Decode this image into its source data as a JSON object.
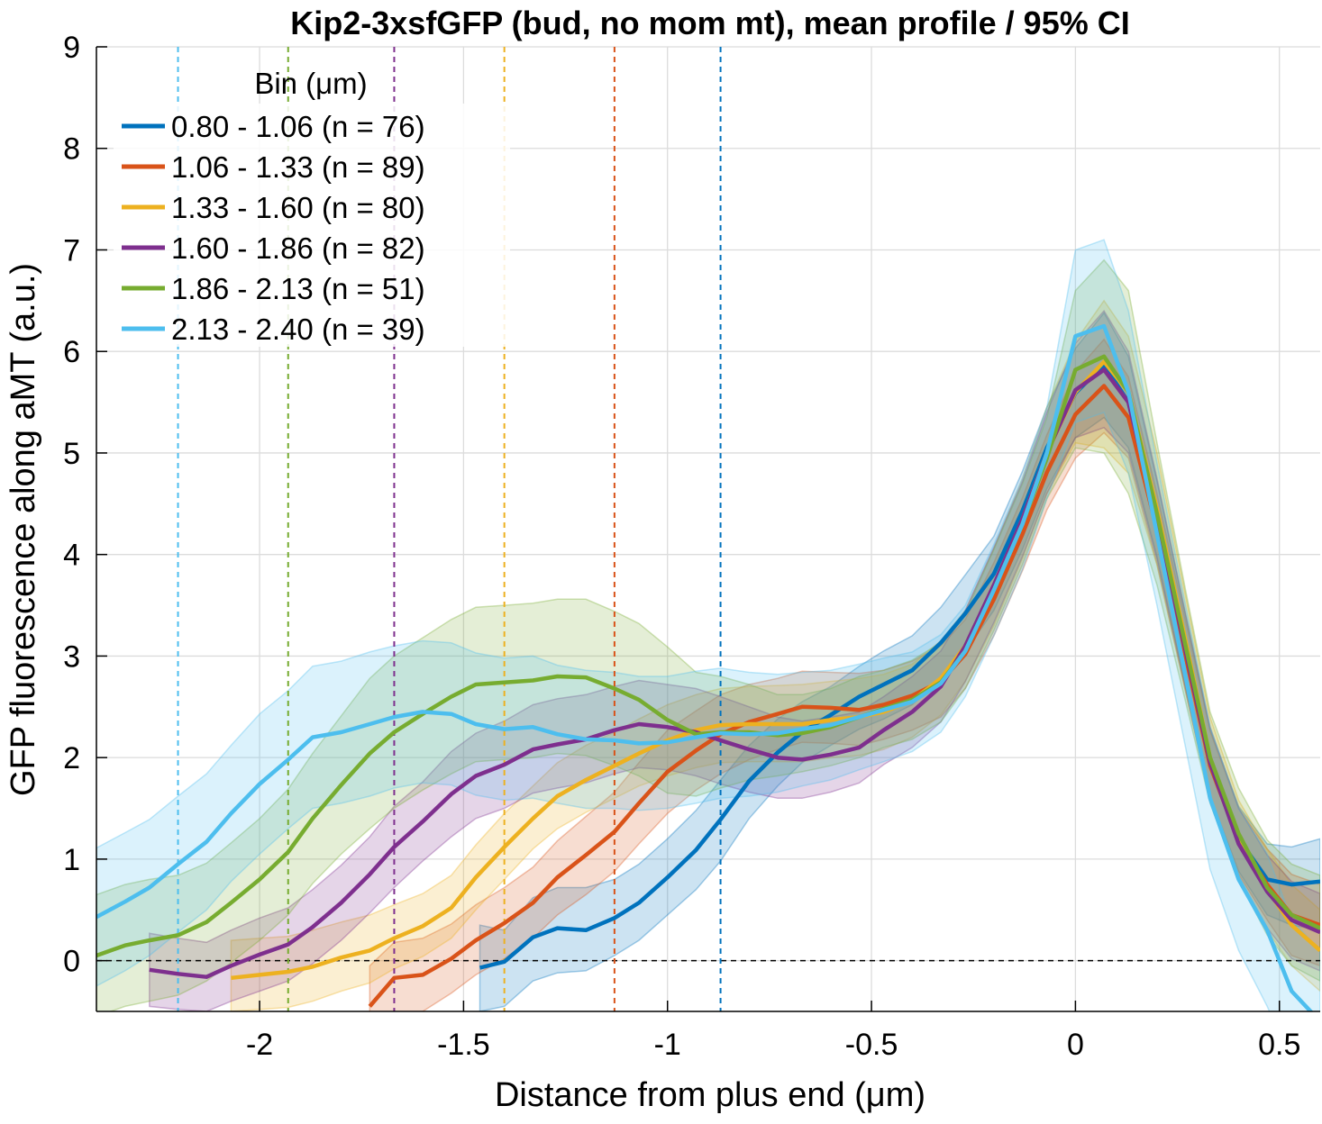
{
  "chart_data": {
    "type": "line",
    "title": "Kip2-3xsfGFP (bud, no mom mt), mean profile / 95% CI",
    "xlabel": "Distance from plus end (μm)",
    "ylabel": "GFP fluorescence along aMT (a.u.)",
    "xlim": [
      -2.4,
      0.6
    ],
    "ylim": [
      -0.5,
      9
    ],
    "xticks": [
      -2,
      -1.5,
      -1,
      -0.5,
      0,
      0.5
    ],
    "xtick_labels": [
      "-2",
      "-1.5",
      "-1",
      "-0.5",
      "0",
      "0.5"
    ],
    "yticks": [
      0,
      1,
      2,
      3,
      4,
      5,
      6,
      7,
      8,
      9
    ],
    "ytick_labels": [
      "0",
      "1",
      "2",
      "3",
      "4",
      "5",
      "6",
      "7",
      "8",
      "9"
    ],
    "grid": true,
    "legend_title": "Bin (μm)",
    "legend_placement": "top-left",
    "zero_line": 0,
    "series": [
      {
        "name": "0.80 - 1.06 (n =  76)",
        "color": "#0072BD",
        "cutoff": -0.87,
        "x": [
          -1.46,
          -1.4,
          -1.33,
          -1.27,
          -1.2,
          -1.13,
          -1.07,
          -1.0,
          -0.93,
          -0.87,
          -0.8,
          -0.73,
          -0.67,
          -0.6,
          -0.53,
          -0.47,
          -0.4,
          -0.33,
          -0.27,
          -0.2,
          -0.13,
          -0.07,
          0.0,
          0.07,
          0.13,
          0.2,
          0.27,
          0.33,
          0.4,
          0.47,
          0.53,
          0.6
        ],
        "y": [
          -0.07,
          -0.01,
          0.23,
          0.32,
          0.3,
          0.42,
          0.57,
          0.82,
          1.09,
          1.39,
          1.77,
          2.05,
          2.25,
          2.42,
          2.6,
          2.72,
          2.86,
          3.13,
          3.42,
          3.81,
          4.43,
          5.05,
          5.59,
          5.87,
          5.5,
          4.35,
          3.05,
          1.95,
          1.2,
          0.8,
          0.75,
          0.78
        ],
        "lower": [
          -0.5,
          -0.45,
          -0.2,
          -0.12,
          -0.1,
          0.05,
          0.2,
          0.45,
          0.7,
          0.98,
          1.4,
          1.72,
          1.95,
          2.12,
          2.28,
          2.38,
          2.52,
          2.78,
          3.05,
          3.45,
          4.05,
          4.65,
          5.15,
          5.35,
          5.05,
          3.98,
          2.7,
          1.62,
          0.88,
          0.45,
          0.35,
          0.3
        ],
        "upper": [
          0.35,
          0.3,
          0.62,
          0.72,
          0.72,
          0.8,
          0.95,
          1.2,
          1.48,
          1.78,
          2.12,
          2.38,
          2.55,
          2.7,
          2.9,
          3.05,
          3.2,
          3.48,
          3.8,
          4.18,
          4.82,
          5.45,
          6.03,
          6.38,
          5.95,
          4.72,
          3.4,
          2.28,
          1.52,
          1.15,
          1.12,
          1.2
        ]
      },
      {
        "name": "1.06 - 1.33 (n =  89)",
        "color": "#D95319",
        "cutoff": -1.13,
        "x": [
          -1.73,
          -1.67,
          -1.6,
          -1.53,
          -1.47,
          -1.4,
          -1.33,
          -1.27,
          -1.2,
          -1.13,
          -1.07,
          -1.0,
          -0.93,
          -0.87,
          -0.8,
          -0.73,
          -0.67,
          -0.6,
          -0.53,
          -0.47,
          -0.4,
          -0.33,
          -0.27,
          -0.2,
          -0.13,
          -0.07,
          0.0,
          0.07,
          0.13,
          0.2,
          0.27,
          0.33,
          0.4,
          0.47,
          0.53,
          0.6
        ],
        "y": [
          -0.45,
          -0.17,
          -0.14,
          0.02,
          0.2,
          0.37,
          0.57,
          0.82,
          1.04,
          1.27,
          1.55,
          1.86,
          2.07,
          2.23,
          2.35,
          2.43,
          2.5,
          2.49,
          2.47,
          2.52,
          2.61,
          2.75,
          3.02,
          3.56,
          4.2,
          4.81,
          5.38,
          5.66,
          5.35,
          4.25,
          3.0,
          1.92,
          1.18,
          0.75,
          0.45,
          0.35
        ],
        "lower": [
          -0.85,
          -0.52,
          -0.5,
          -0.32,
          -0.14,
          0.02,
          0.22,
          0.45,
          0.65,
          0.88,
          1.15,
          1.45,
          1.68,
          1.84,
          1.98,
          2.08,
          2.15,
          2.14,
          2.12,
          2.18,
          2.27,
          2.4,
          2.68,
          3.2,
          3.84,
          4.44,
          4.95,
          5.2,
          4.95,
          3.9,
          2.65,
          1.58,
          0.85,
          0.4,
          0.05,
          -0.05
        ],
        "upper": [
          -0.05,
          0.18,
          0.22,
          0.36,
          0.55,
          0.72,
          0.92,
          1.18,
          1.42,
          1.66,
          1.95,
          2.27,
          2.46,
          2.62,
          2.72,
          2.78,
          2.85,
          2.84,
          2.83,
          2.86,
          2.95,
          3.1,
          3.36,
          3.92,
          4.56,
          5.18,
          5.8,
          6.12,
          5.75,
          4.6,
          3.35,
          2.26,
          1.5,
          1.1,
          0.85,
          0.75
        ]
      },
      {
        "name": "1.33 - 1.60 (n =  80)",
        "color": "#EDB120",
        "cutoff": -1.4,
        "x": [
          -2.07,
          -2.0,
          -1.93,
          -1.87,
          -1.8,
          -1.73,
          -1.67,
          -1.6,
          -1.53,
          -1.47,
          -1.4,
          -1.33,
          -1.27,
          -1.2,
          -1.13,
          -1.07,
          -1.0,
          -0.93,
          -0.87,
          -0.8,
          -0.73,
          -0.67,
          -0.6,
          -0.53,
          -0.47,
          -0.4,
          -0.33,
          -0.27,
          -0.2,
          -0.13,
          -0.07,
          0.0,
          0.07,
          0.13,
          0.2,
          0.27,
          0.33,
          0.4,
          0.47,
          0.53,
          0.6
        ],
        "y": [
          -0.17,
          -0.14,
          -0.11,
          -0.06,
          0.03,
          0.1,
          0.22,
          0.34,
          0.52,
          0.82,
          1.12,
          1.4,
          1.62,
          1.78,
          1.92,
          2.04,
          2.17,
          2.27,
          2.32,
          2.33,
          2.33,
          2.33,
          2.37,
          2.4,
          2.45,
          2.56,
          2.78,
          3.1,
          3.68,
          4.35,
          5.0,
          5.6,
          5.9,
          5.6,
          4.45,
          3.15,
          2.0,
          1.2,
          0.7,
          0.35,
          0.1
        ],
        "lower": [
          -0.5,
          -0.48,
          -0.46,
          -0.4,
          -0.3,
          -0.22,
          -0.08,
          0.04,
          0.22,
          0.5,
          0.8,
          1.1,
          1.3,
          1.46,
          1.6,
          1.72,
          1.82,
          1.9,
          1.95,
          1.96,
          1.96,
          1.96,
          2.0,
          2.02,
          2.08,
          2.2,
          2.42,
          2.75,
          3.3,
          3.96,
          4.6,
          5.1,
          5.05,
          4.8,
          3.9,
          2.65,
          1.6,
          0.82,
          0.3,
          -0.05,
          -0.3
        ],
        "upper": [
          0.2,
          0.22,
          0.24,
          0.3,
          0.38,
          0.45,
          0.55,
          0.66,
          0.84,
          1.14,
          1.45,
          1.72,
          1.95,
          2.12,
          2.25,
          2.38,
          2.52,
          2.62,
          2.68,
          2.7,
          2.71,
          2.72,
          2.75,
          2.78,
          2.82,
          2.92,
          3.15,
          3.45,
          4.06,
          4.75,
          5.45,
          6.1,
          6.5,
          6.15,
          5.0,
          3.6,
          2.4,
          1.58,
          1.1,
          0.75,
          0.5
        ]
      },
      {
        "name": "1.60 - 1.86 (n =  82)",
        "color": "#7E2F8E",
        "cutoff": -1.67,
        "x": [
          -2.27,
          -2.2,
          -2.13,
          -2.07,
          -2.0,
          -1.93,
          -1.87,
          -1.8,
          -1.73,
          -1.67,
          -1.6,
          -1.53,
          -1.47,
          -1.4,
          -1.33,
          -1.27,
          -1.2,
          -1.13,
          -1.07,
          -1.0,
          -0.93,
          -0.87,
          -0.8,
          -0.73,
          -0.67,
          -0.6,
          -0.53,
          -0.47,
          -0.4,
          -0.33,
          -0.27,
          -0.2,
          -0.13,
          -0.07,
          0.0,
          0.07,
          0.13,
          0.2,
          0.27,
          0.33,
          0.4,
          0.47,
          0.53,
          0.6
        ],
        "y": [
          -0.09,
          -0.13,
          -0.16,
          -0.05,
          0.06,
          0.16,
          0.33,
          0.57,
          0.85,
          1.12,
          1.37,
          1.64,
          1.82,
          1.93,
          2.08,
          2.13,
          2.18,
          2.27,
          2.33,
          2.3,
          2.25,
          2.17,
          2.08,
          2.0,
          1.98,
          2.03,
          2.1,
          2.27,
          2.45,
          2.7,
          3.1,
          3.7,
          4.35,
          5.0,
          5.62,
          5.82,
          5.5,
          4.35,
          3.05,
          1.95,
          1.15,
          0.68,
          0.4,
          0.28
        ],
        "lower": [
          -0.45,
          -0.48,
          -0.5,
          -0.4,
          -0.3,
          -0.2,
          -0.03,
          0.2,
          0.47,
          0.72,
          0.98,
          1.22,
          1.4,
          1.5,
          1.65,
          1.7,
          1.75,
          1.84,
          1.9,
          1.88,
          1.82,
          1.74,
          1.66,
          1.6,
          1.6,
          1.66,
          1.75,
          1.93,
          2.1,
          2.35,
          2.75,
          3.33,
          3.98,
          4.6,
          5.15,
          5.25,
          5.0,
          3.95,
          2.68,
          1.6,
          0.8,
          0.32,
          0.02,
          -0.1
        ],
        "upper": [
          0.27,
          0.22,
          0.18,
          0.3,
          0.42,
          0.52,
          0.7,
          0.94,
          1.22,
          1.52,
          1.76,
          2.06,
          2.24,
          2.36,
          2.52,
          2.58,
          2.62,
          2.7,
          2.76,
          2.72,
          2.68,
          2.6,
          2.5,
          2.4,
          2.36,
          2.4,
          2.45,
          2.6,
          2.8,
          3.05,
          3.45,
          4.07,
          4.72,
          5.4,
          6.08,
          6.4,
          6.0,
          4.75,
          3.42,
          2.3,
          1.5,
          1.04,
          0.78,
          0.66
        ]
      },
      {
        "name": "1.86 - 2.13 (n =  51)",
        "color": "#77AC30",
        "cutoff": -1.93,
        "x": [
          -2.4,
          -2.33,
          -2.27,
          -2.2,
          -2.13,
          -2.07,
          -2.0,
          -1.93,
          -1.87,
          -1.8,
          -1.73,
          -1.67,
          -1.6,
          -1.53,
          -1.47,
          -1.4,
          -1.33,
          -1.27,
          -1.2,
          -1.13,
          -1.07,
          -1.0,
          -0.93,
          -0.87,
          -0.8,
          -0.73,
          -0.67,
          -0.6,
          -0.53,
          -0.47,
          -0.4,
          -0.33,
          -0.27,
          -0.2,
          -0.13,
          -0.07,
          0.0,
          0.07,
          0.13,
          0.2,
          0.27,
          0.33,
          0.4,
          0.47,
          0.53,
          0.6
        ],
        "y": [
          0.05,
          0.15,
          0.2,
          0.25,
          0.38,
          0.57,
          0.8,
          1.07,
          1.4,
          1.73,
          2.04,
          2.25,
          2.43,
          2.6,
          2.72,
          2.74,
          2.76,
          2.8,
          2.79,
          2.68,
          2.57,
          2.37,
          2.23,
          2.25,
          2.25,
          2.22,
          2.24,
          2.3,
          2.4,
          2.48,
          2.57,
          2.74,
          3.05,
          3.65,
          4.3,
          4.95,
          5.82,
          5.95,
          5.6,
          4.4,
          3.1,
          2.0,
          1.25,
          0.72,
          0.45,
          0.32
        ],
        "lower": [
          -0.55,
          -0.45,
          -0.4,
          -0.34,
          -0.2,
          -0.02,
          0.2,
          0.45,
          0.76,
          1.05,
          1.3,
          1.5,
          1.68,
          1.84,
          1.96,
          1.98,
          2.0,
          2.04,
          2.02,
          1.92,
          1.82,
          1.65,
          1.62,
          1.7,
          1.78,
          1.82,
          1.86,
          1.92,
          2.0,
          2.1,
          2.18,
          2.35,
          2.68,
          3.25,
          3.9,
          4.55,
          5.05,
          5.0,
          4.6,
          3.7,
          2.55,
          1.55,
          0.8,
          0.25,
          -0.05,
          -0.2
        ],
        "upper": [
          0.65,
          0.75,
          0.8,
          0.84,
          0.96,
          1.16,
          1.4,
          1.69,
          2.04,
          2.41,
          2.78,
          3.0,
          3.18,
          3.36,
          3.48,
          3.5,
          3.52,
          3.56,
          3.56,
          3.44,
          3.32,
          3.09,
          2.84,
          2.8,
          2.72,
          2.62,
          2.62,
          2.68,
          2.8,
          2.86,
          2.96,
          3.13,
          3.42,
          4.05,
          4.7,
          5.35,
          6.6,
          6.9,
          6.6,
          5.1,
          3.65,
          2.45,
          1.7,
          1.19,
          0.95,
          0.84
        ]
      },
      {
        "name": "2.13 - 2.40 (n =  39)",
        "color": "#4DBEEE",
        "cutoff": -2.2,
        "x": [
          -2.4,
          -2.33,
          -2.27,
          -2.2,
          -2.13,
          -2.07,
          -2.0,
          -1.93,
          -1.87,
          -1.8,
          -1.73,
          -1.67,
          -1.6,
          -1.53,
          -1.47,
          -1.4,
          -1.33,
          -1.27,
          -1.2,
          -1.13,
          -1.07,
          -1.0,
          -0.93,
          -0.87,
          -0.8,
          -0.73,
          -0.67,
          -0.6,
          -0.53,
          -0.47,
          -0.4,
          -0.33,
          -0.27,
          -0.2,
          -0.13,
          -0.07,
          0.0,
          0.07,
          0.13,
          0.2,
          0.27,
          0.33,
          0.4,
          0.47,
          0.53,
          0.6
        ],
        "y": [
          0.43,
          0.58,
          0.72,
          0.95,
          1.17,
          1.45,
          1.74,
          1.98,
          2.2,
          2.25,
          2.33,
          2.4,
          2.45,
          2.43,
          2.33,
          2.28,
          2.3,
          2.23,
          2.18,
          2.17,
          2.14,
          2.15,
          2.2,
          2.24,
          2.23,
          2.24,
          2.28,
          2.32,
          2.4,
          2.47,
          2.55,
          2.73,
          3.05,
          3.65,
          4.3,
          5.0,
          6.15,
          6.25,
          5.6,
          4.2,
          2.8,
          1.6,
          0.8,
          0.3,
          -0.3,
          -0.6
        ],
        "lower": [
          -0.25,
          -0.1,
          0.05,
          0.28,
          0.5,
          0.78,
          1.05,
          1.3,
          1.5,
          1.55,
          1.62,
          1.7,
          1.75,
          1.73,
          1.63,
          1.58,
          1.6,
          1.55,
          1.5,
          1.5,
          1.48,
          1.5,
          1.55,
          1.6,
          1.62,
          1.66,
          1.72,
          1.78,
          1.88,
          1.96,
          2.06,
          2.25,
          2.6,
          3.2,
          3.85,
          4.55,
          5.3,
          5.4,
          4.8,
          3.5,
          2.1,
          0.9,
          0.1,
          -0.45,
          -1.0,
          -1.3
        ],
        "upper": [
          1.11,
          1.26,
          1.39,
          1.62,
          1.84,
          2.12,
          2.43,
          2.66,
          2.9,
          2.95,
          3.04,
          3.1,
          3.15,
          3.13,
          3.03,
          2.98,
          3.0,
          2.91,
          2.86,
          2.84,
          2.8,
          2.8,
          2.85,
          2.88,
          2.84,
          2.82,
          2.84,
          2.86,
          2.92,
          2.98,
          3.04,
          3.21,
          3.5,
          4.1,
          4.75,
          5.45,
          7.0,
          7.1,
          6.4,
          4.9,
          3.5,
          2.3,
          1.5,
          1.05,
          0.4,
          0.1
        ]
      }
    ]
  }
}
